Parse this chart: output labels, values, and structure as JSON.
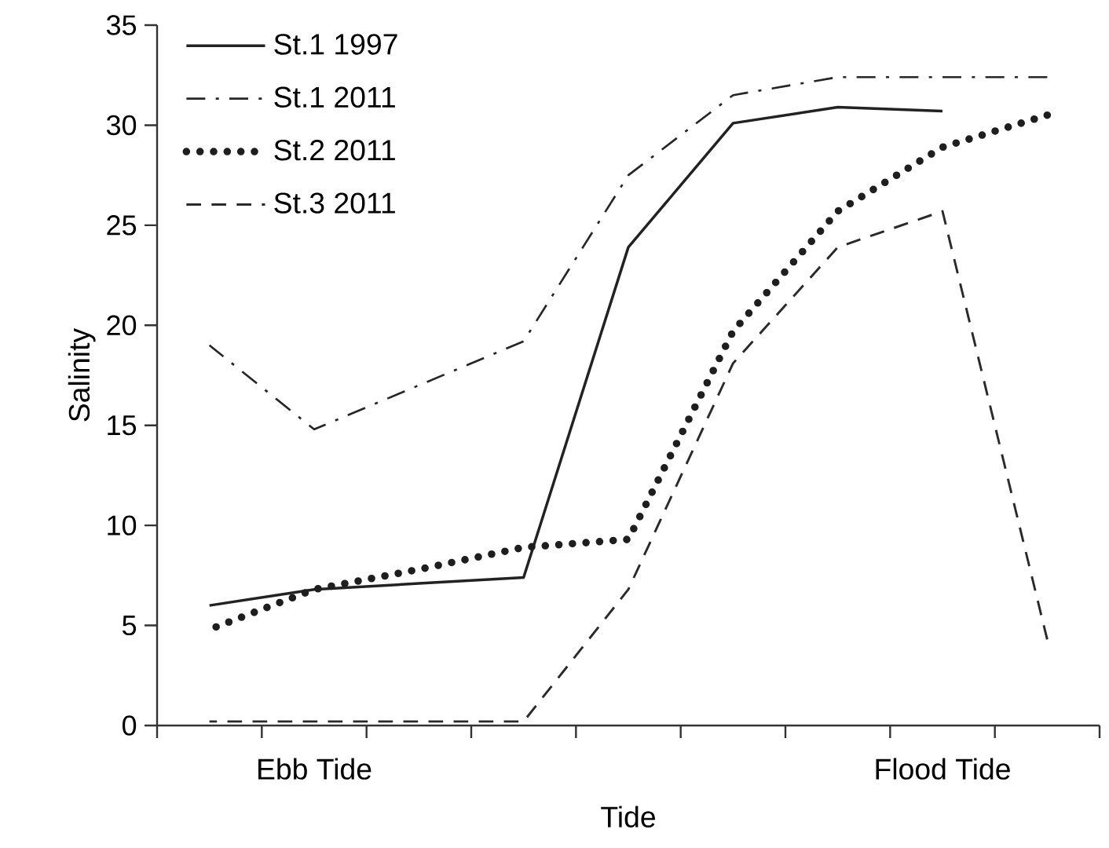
{
  "chart_data": {
    "type": "line",
    "xlabel": "Tide",
    "ylabel": "Salinity",
    "categories": [
      null,
      "Ebb Tide",
      null,
      null,
      null,
      null,
      null,
      "Flood Tide",
      null
    ],
    "ylim": [
      0,
      35
    ],
    "yticks": [
      0,
      5,
      10,
      15,
      20,
      25,
      30,
      35
    ],
    "legend": "top left",
    "marker": "none",
    "series": [
      {
        "name": "St.1 1997",
        "color": "#222222",
        "line_style": "solid",
        "values": [
          6.0,
          6.8,
          7.1,
          7.4,
          23.9,
          30.1,
          30.9,
          30.7,
          null
        ]
      },
      {
        "name": "St.1 2011",
        "color": "#262626",
        "line_style": "dashdot",
        "values": [
          19.0,
          14.8,
          17.0,
          19.2,
          27.5,
          31.5,
          32.4,
          32.4,
          32.4
        ]
      },
      {
        "name": "St.2 2011",
        "color": "#1e1e1e",
        "line_style": "dotted",
        "values": [
          4.8,
          6.8,
          7.8,
          8.9,
          9.3,
          19.7,
          25.7,
          28.9,
          30.5
        ]
      },
      {
        "name": "St.3 2011",
        "color": "#2a2a2a",
        "line_style": "dashed",
        "values": [
          0.2,
          0.2,
          0.2,
          0.2,
          6.8,
          18.1,
          23.9,
          25.7,
          4.3
        ]
      }
    ]
  }
}
